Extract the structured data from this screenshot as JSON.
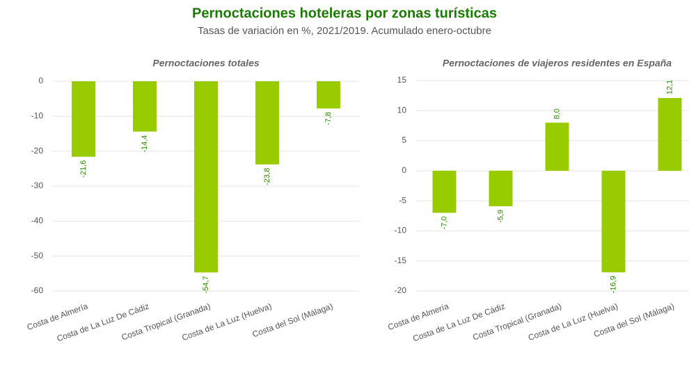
{
  "header": {
    "title": "Pernoctaciones hoteleras por zonas turísticas",
    "subtitle": "Tasas de variación en %, 2021/2019. Acumulado enero-octubre"
  },
  "chart_data": [
    {
      "type": "bar",
      "title": "Pernoctaciones totales",
      "categories": [
        "Costa de Almería",
        "Costa de La Luz De Cádiz",
        "Costa Tropical (Granada)",
        "Costa de La Luz (Huelva)",
        "Costa del Sol (Málaga)"
      ],
      "values": [
        -21.6,
        -14.4,
        -54.7,
        -23.8,
        -7.8
      ],
      "value_labels": [
        "-21,6",
        "-14,4",
        "-54,7",
        "-23,8",
        "-7,8"
      ],
      "color": "#99cc00",
      "ylim": [
        -60,
        0
      ],
      "yticks": [
        0,
        -10,
        -20,
        -30,
        -40,
        -50,
        -60
      ],
      "grid": true
    },
    {
      "type": "bar",
      "title": "Pernoctaciones de viajeros residentes en España",
      "categories": [
        "Costa de Almería",
        "Costa de La Luz De Cádiz",
        "Costa Tropical (Granada)",
        "Costa de La Luz (Huelva)",
        "Costa del Sol (Málaga)"
      ],
      "values": [
        -7.0,
        -5.9,
        8.0,
        -16.9,
        12.1
      ],
      "value_labels": [
        "-7,0",
        "-5,9",
        "8,0",
        "-16,9",
        "12,1"
      ],
      "color": "#99cc00",
      "ylim": [
        -20,
        15
      ],
      "yticks": [
        15,
        10,
        5,
        0,
        -5,
        -10,
        -15,
        -20
      ],
      "grid": true
    }
  ]
}
